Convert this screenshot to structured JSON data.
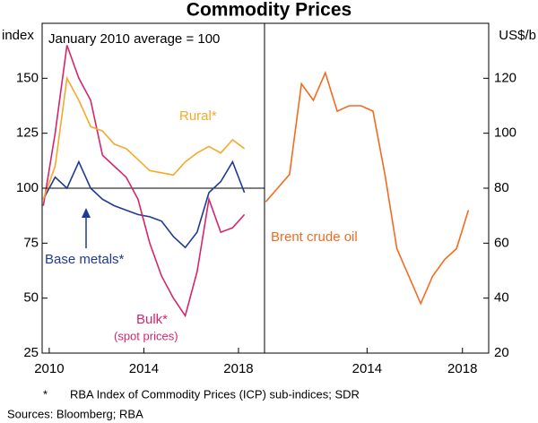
{
  "title": "Commodity Prices",
  "chart_data": [
    {
      "type": "line",
      "ylabel": "index",
      "annotation": "January 2010 average = 100",
      "xlim": [
        2009.7,
        2019.1
      ],
      "xticks": [
        2010,
        2014,
        2018
      ],
      "ylim": [
        25,
        175
      ],
      "yticks": [
        25,
        50,
        75,
        100,
        125,
        150
      ],
      "hline": 100,
      "x": [
        2009.75,
        2010.25,
        2010.75,
        2011.25,
        2011.75,
        2012.25,
        2012.75,
        2013.25,
        2013.75,
        2014.25,
        2014.75,
        2015.25,
        2015.75,
        2016.25,
        2016.75,
        2017.25,
        2017.75,
        2018.25
      ],
      "series": [
        {
          "name": "Rural*",
          "color": "#f5a82b",
          "values": [
            95,
            110,
            150,
            140,
            128,
            126,
            120,
            118,
            113,
            108,
            107,
            106,
            112,
            116,
            119,
            116,
            122,
            118
          ]
        },
        {
          "name": "Bulk*",
          "note": "(spot prices)",
          "color": "#d6246e",
          "values": [
            92,
            125,
            165,
            150,
            140,
            115,
            110,
            105,
            95,
            75,
            60,
            50,
            42,
            62,
            95,
            80,
            82,
            88
          ]
        },
        {
          "name": "Base metals*",
          "color": "#1f3a93",
          "values": [
            95,
            105,
            100,
            112,
            100,
            95,
            92,
            90,
            88,
            87,
            85,
            78,
            73,
            80,
            98,
            103,
            112,
            98
          ]
        }
      ]
    },
    {
      "type": "line",
      "ylabel": "US$/b",
      "xlim": [
        2009.7,
        2019.1
      ],
      "xticks": [
        2014,
        2018
      ],
      "ylim": [
        20,
        140
      ],
      "yticks": [
        20,
        40,
        60,
        80,
        100,
        120
      ],
      "x": [
        2009.75,
        2010.25,
        2010.75,
        2011.25,
        2011.75,
        2012.25,
        2012.75,
        2013.25,
        2013.75,
        2014.25,
        2014.75,
        2015.25,
        2015.75,
        2016.25,
        2016.75,
        2017.25,
        2017.75,
        2018.25
      ],
      "series": [
        {
          "name": "Brent crude oil",
          "color": "#f26b21",
          "values": [
            75,
            80,
            85,
            118,
            112,
            122,
            108,
            110,
            110,
            108,
            85,
            58,
            48,
            38,
            48,
            54,
            58,
            72
          ]
        }
      ]
    }
  ],
  "notes": {
    "marker": "*",
    "text": "RBA Index of Commodity Prices (ICP) sub-indices; SDR",
    "sources": "Sources: Bloomberg; RBA"
  }
}
